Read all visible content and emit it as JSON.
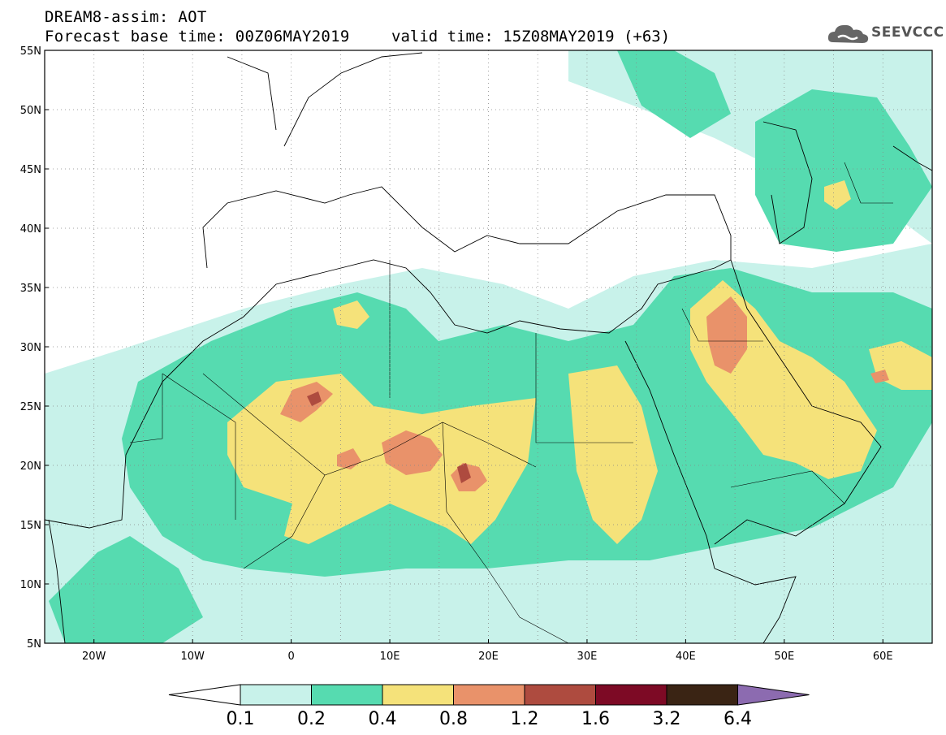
{
  "header": {
    "title_line1": "DREAM8-assim: AOT",
    "title_line2": "Forecast base time: 00Z06MAY2019",
    "valid_time": "valid time: 15Z08MAY2019 (+63)",
    "logo_text": "SEEVCCC"
  },
  "map": {
    "lon_range": [
      -25,
      65
    ],
    "lat_range": [
      5,
      55
    ],
    "lat_labels": [
      "55N",
      "50N",
      "45N",
      "40N",
      "35N",
      "30N",
      "25N",
      "20N",
      "15N",
      "10N",
      "5N"
    ],
    "lon_labels": [
      "20W",
      "10W",
      "0",
      "10E",
      "20E",
      "30E",
      "40E",
      "50E",
      "60E"
    ],
    "lat_values": [
      55,
      50,
      45,
      40,
      35,
      30,
      25,
      20,
      15,
      10,
      5
    ],
    "lon_values": [
      -20,
      -10,
      0,
      10,
      20,
      30,
      40,
      50,
      60
    ],
    "gridlines": "dotted"
  },
  "colorbar": {
    "labels": [
      "0.1",
      "0.2",
      "0.4",
      "0.8",
      "1.2",
      "1.6",
      "3.2",
      "6.4"
    ],
    "colors": [
      "#c8f2ea",
      "#56dbb0",
      "#f5e27a",
      "#e9926a",
      "#ae4b3f",
      "#7d0a25",
      "#3a2414",
      "#8c6bb0"
    ]
  }
}
